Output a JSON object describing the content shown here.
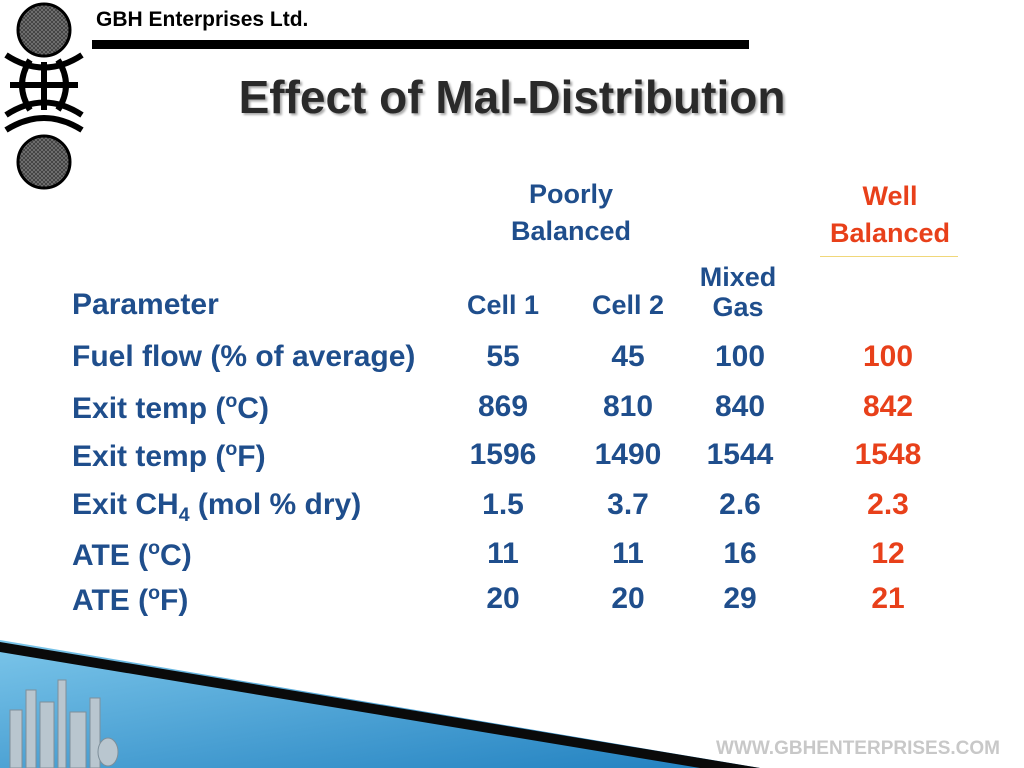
{
  "header": {
    "company": "GBH Enterprises Ltd.",
    "title": "Effect of Mal-Distribution"
  },
  "table": {
    "group_poor_line1": "Poorly",
    "group_poor_line2": "Balanced",
    "group_well_line1": "Well",
    "group_well_line2": "Balanced",
    "param_header": "Parameter",
    "col_cell1": "Cell 1",
    "col_cell2": "Cell 2",
    "col_mixed_line1": "Mixed",
    "col_mixed_line2": "Gas",
    "rows": [
      {
        "label": "Fuel flow (% of average)",
        "cell1": "55",
        "cell2": "45",
        "mixed": "100",
        "well": "100"
      },
      {
        "label_pre": "Exit temp (",
        "label_sup": "o",
        "label_post": "C)",
        "cell1": "869",
        "cell2": "810",
        "mixed": "840",
        "well": "842"
      },
      {
        "label_pre": "Exit temp (",
        "label_sup": "o",
        "label_post": "F)",
        "cell1": "1596",
        "cell2": "1490",
        "mixed": "1544",
        "well": "1548"
      },
      {
        "label_pre": "Exit CH",
        "label_sub": "4",
        "label_post": " (mol % dry)",
        "cell1": "1.5",
        "cell2": "3.7",
        "mixed": "2.6",
        "well": "2.3"
      },
      {
        "label_pre": "ATE (",
        "label_sup": "o",
        "label_post": "C)",
        "cell1": "11",
        "cell2": "11",
        "mixed": "16",
        "well": "12"
      },
      {
        "label_pre": "ATE (",
        "label_sup": "o",
        "label_post": "F)",
        "cell1": "20",
        "cell2": "20",
        "mixed": "29",
        "well": "21"
      }
    ]
  },
  "footer": {
    "website": "WWW.GBHENTERPRISES.COM"
  },
  "colors": {
    "poorly": "#1f4e8c",
    "well": "#e8401a",
    "footer_blue": "#2a8fc7"
  }
}
